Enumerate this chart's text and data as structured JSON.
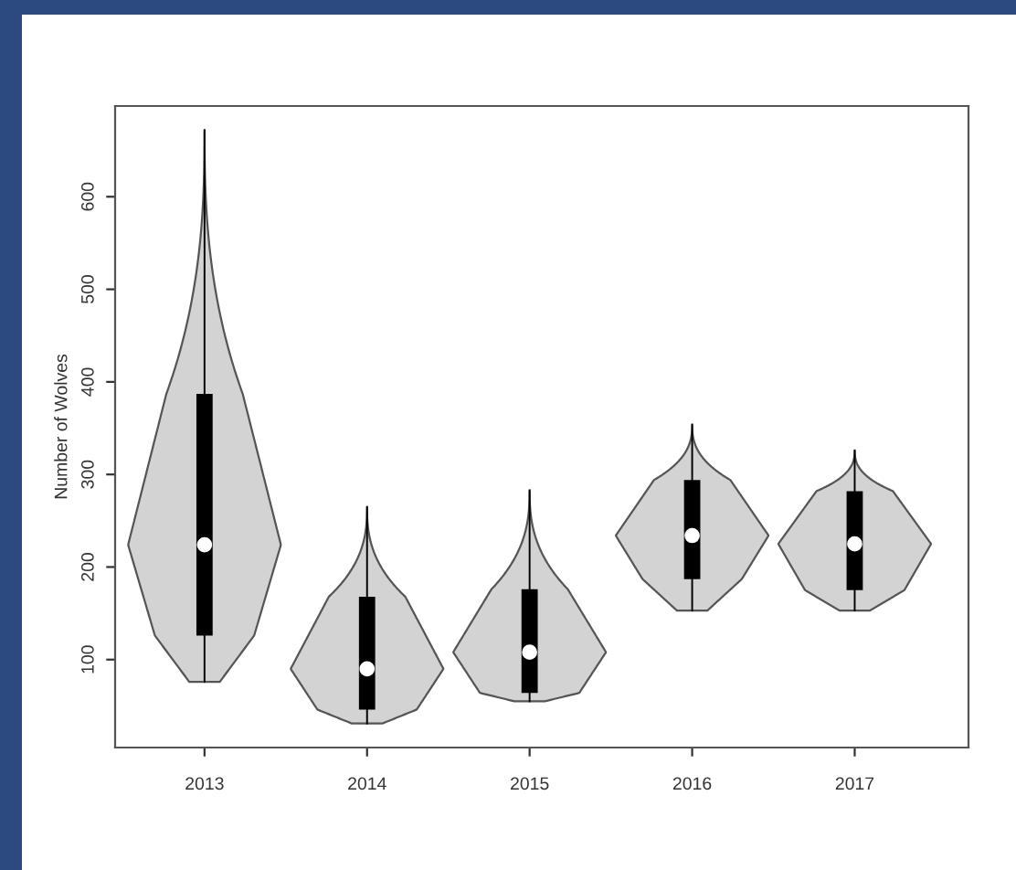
{
  "chart_data": {
    "type": "box",
    "ylabel": "Number of Wolves",
    "categories": [
      "2013",
      "2014",
      "2015",
      "2016",
      "2017"
    ],
    "boxes": [
      {
        "low": 76,
        "q1": 126,
        "median": 224,
        "q3": 387,
        "high": 672
      },
      {
        "low": 31,
        "q1": 46,
        "median": 90,
        "q3": 168,
        "high": 265
      },
      {
        "low": 55,
        "q1": 64,
        "median": 108,
        "q3": 176,
        "high": 283
      },
      {
        "low": 153,
        "q1": 187,
        "median": 234,
        "q3": 294,
        "high": 354
      },
      {
        "low": 153,
        "q1": 175,
        "median": 225,
        "q3": 282,
        "high": 326
      }
    ],
    "color": "#000000",
    "ylim": [
      5,
      698
    ],
    "yticks": [
      100,
      200,
      300,
      400,
      500,
      600
    ],
    "grid": false
  }
}
